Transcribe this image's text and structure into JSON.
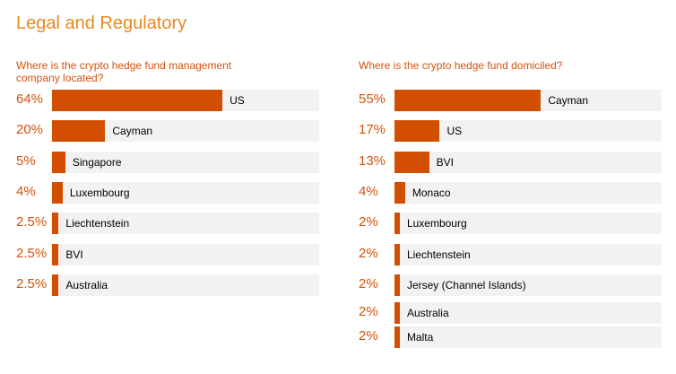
{
  "title": "Legal and Regulatory",
  "chart_data": [
    {
      "type": "bar",
      "orientation": "horizontal",
      "title": "Where is the crypto hedge fund management company located?",
      "categories": [
        "US",
        "Cayman",
        "Singapore",
        "Luxembourg",
        "Liechtenstein",
        "BVI",
        "Australia"
      ],
      "values": [
        64,
        20,
        5,
        4,
        2.5,
        2.5,
        2.5
      ],
      "value_labels": [
        "64%",
        "20%",
        "5%",
        "4%",
        "2.5%",
        "2.5%",
        "2.5%"
      ],
      "xlim": [
        0,
        100
      ],
      "bar_color": "#d24e01",
      "track_color": "#f2f2f2"
    },
    {
      "type": "bar",
      "orientation": "horizontal",
      "title": "Where is the crypto hedge fund domiciled?",
      "categories": [
        "Cayman",
        "US",
        "BVI",
        "Monaco",
        "Luxembourg",
        "Liechtenstein",
        "Jersey (Channel Islands)",
        "Australia",
        "Malta"
      ],
      "values": [
        55,
        17,
        13,
        4,
        2,
        2,
        2,
        2,
        2
      ],
      "value_labels": [
        "55%",
        "17%",
        "13%",
        "4%",
        "2%",
        "2%",
        "2%",
        "2%",
        "2%"
      ],
      "xlim": [
        0,
        100
      ],
      "bar_color": "#d24e01",
      "track_color": "#f2f2f2"
    }
  ]
}
